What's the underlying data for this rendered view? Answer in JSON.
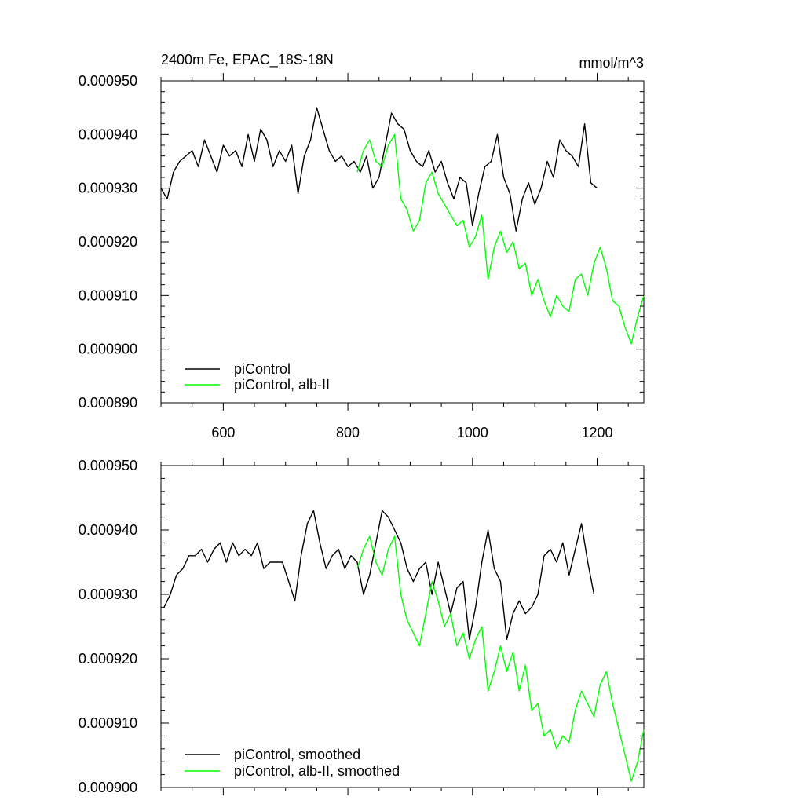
{
  "chart_data": [
    {
      "type": "line",
      "title": "2400m Fe, EPAC_18S-18N",
      "units_label": "mmol/m^3",
      "xlim": [
        500,
        1275
      ],
      "ylim": [
        0.00089,
        0.00095
      ],
      "xticks": [
        600,
        800,
        1000,
        1200
      ],
      "yticks": [
        0.00089,
        0.0009,
        0.00091,
        0.00092,
        0.00093,
        0.00094,
        0.00095
      ],
      "ytick_labels": [
        "0.000890",
        "0.000900",
        "0.000910",
        "0.000920",
        "0.000930",
        "0.000940",
        "0.000950"
      ],
      "xtick_labels": [
        "600",
        "800",
        "1000",
        "1200"
      ],
      "legend": "bottom-left",
      "grid": false,
      "series": [
        {
          "name": "piControl",
          "color": "#000000",
          "x": [
            500,
            510,
            520,
            530,
            540,
            550,
            560,
            570,
            580,
            590,
            600,
            610,
            620,
            630,
            640,
            650,
            660,
            670,
            680,
            690,
            700,
            710,
            720,
            730,
            740,
            750,
            760,
            770,
            780,
            790,
            800,
            810,
            820,
            830,
            840,
            850,
            860,
            870,
            880,
            890,
            900,
            910,
            920,
            930,
            940,
            950,
            960,
            970,
            980,
            990,
            1000,
            1010,
            1020,
            1030,
            1040,
            1050,
            1060,
            1070,
            1080,
            1090,
            1100,
            1110,
            1120,
            1130,
            1140,
            1150,
            1160,
            1170,
            1180,
            1190,
            1200
          ],
          "values": [
            0.00093,
            0.000928,
            0.000933,
            0.000935,
            0.000936,
            0.000937,
            0.000934,
            0.000939,
            0.000936,
            0.000933,
            0.000938,
            0.000936,
            0.000937,
            0.000934,
            0.00094,
            0.000935,
            0.000941,
            0.000939,
            0.000934,
            0.000937,
            0.000935,
            0.000938,
            0.000929,
            0.000936,
            0.000939,
            0.000945,
            0.000941,
            0.000937,
            0.000935,
            0.000936,
            0.000934,
            0.000935,
            0.000933,
            0.000936,
            0.00093,
            0.000932,
            0.000938,
            0.000944,
            0.000942,
            0.000941,
            0.000937,
            0.000935,
            0.000934,
            0.000937,
            0.000933,
            0.000935,
            0.000931,
            0.000928,
            0.000932,
            0.000931,
            0.000923,
            0.000929,
            0.000934,
            0.000935,
            0.00094,
            0.000932,
            0.000929,
            0.000922,
            0.000928,
            0.000931,
            0.000927,
            0.00093,
            0.000935,
            0.000932,
            0.000939,
            0.000937,
            0.000936,
            0.000934,
            0.000942,
            0.000931,
            0.00093
          ]
        },
        {
          "name": "piControl, alb-II",
          "color": "#00ff00",
          "x": [
            815,
            825,
            835,
            845,
            855,
            865,
            875,
            885,
            895,
            905,
            915,
            925,
            935,
            945,
            955,
            965,
            975,
            985,
            995,
            1005,
            1015,
            1025,
            1035,
            1045,
            1055,
            1065,
            1075,
            1085,
            1095,
            1105,
            1115,
            1125,
            1135,
            1145,
            1155,
            1165,
            1175,
            1185,
            1195,
            1205,
            1215,
            1225,
            1235,
            1245,
            1255,
            1265,
            1275
          ],
          "values": [
            0.000933,
            0.000937,
            0.000939,
            0.000935,
            0.000934,
            0.000938,
            0.00094,
            0.000928,
            0.000926,
            0.000922,
            0.000924,
            0.000931,
            0.000933,
            0.000929,
            0.000927,
            0.000925,
            0.000923,
            0.000924,
            0.000919,
            0.000921,
            0.000925,
            0.000913,
            0.000919,
            0.000922,
            0.000918,
            0.00092,
            0.000915,
            0.000916,
            0.00091,
            0.000913,
            0.000909,
            0.000906,
            0.00091,
            0.000908,
            0.000907,
            0.000913,
            0.000914,
            0.00091,
            0.000916,
            0.000919,
            0.000915,
            0.000909,
            0.000908,
            0.000904,
            0.000901,
            0.000906,
            0.00091
          ]
        }
      ]
    },
    {
      "type": "line",
      "xlim": [
        500,
        1275
      ],
      "ylim": [
        0.0009,
        0.00095
      ],
      "xticks": [
        600,
        800,
        1000,
        1200
      ],
      "yticks": [
        0.0009,
        0.00091,
        0.00092,
        0.00093,
        0.00094,
        0.00095
      ],
      "ytick_labels": [
        "0.000900",
        "0.000910",
        "0.000920",
        "0.000930",
        "0.000940",
        "0.000950"
      ],
      "legend": "bottom-left",
      "grid": false,
      "series": [
        {
          "name": "piControl, smoothed",
          "color": "#000000",
          "x": [
            505,
            515,
            525,
            535,
            545,
            555,
            565,
            575,
            585,
            595,
            605,
            615,
            625,
            635,
            645,
            655,
            665,
            675,
            685,
            695,
            705,
            715,
            725,
            735,
            745,
            755,
            765,
            775,
            785,
            795,
            805,
            815,
            825,
            835,
            845,
            855,
            865,
            875,
            885,
            895,
            905,
            915,
            925,
            935,
            945,
            955,
            965,
            975,
            985,
            995,
            1005,
            1015,
            1025,
            1035,
            1045,
            1055,
            1065,
            1075,
            1085,
            1095,
            1105,
            1115,
            1125,
            1135,
            1145,
            1155,
            1165,
            1175,
            1185,
            1195
          ],
          "values": [
            0.000928,
            0.00093,
            0.000933,
            0.000934,
            0.000936,
            0.000936,
            0.000937,
            0.000935,
            0.000937,
            0.000938,
            0.000935,
            0.000938,
            0.000936,
            0.000937,
            0.000936,
            0.000938,
            0.000934,
            0.000935,
            0.000935,
            0.000935,
            0.000932,
            0.000929,
            0.000936,
            0.000941,
            0.000943,
            0.000938,
            0.000934,
            0.000936,
            0.000937,
            0.000934,
            0.000936,
            0.000935,
            0.00093,
            0.000933,
            0.000938,
            0.000943,
            0.000942,
            0.00094,
            0.000938,
            0.000934,
            0.000932,
            0.000934,
            0.000935,
            0.00093,
            0.000935,
            0.000931,
            0.000927,
            0.000931,
            0.000932,
            0.000923,
            0.000928,
            0.000935,
            0.00094,
            0.000934,
            0.000932,
            0.000923,
            0.000927,
            0.000929,
            0.000927,
            0.000928,
            0.00093,
            0.000936,
            0.000937,
            0.000935,
            0.000938,
            0.000933,
            0.000937,
            0.000941,
            0.000935,
            0.00093
          ]
        },
        {
          "name": "piControl, alb-II, smoothed",
          "color": "#00ff00",
          "x": [
            815,
            825,
            835,
            845,
            855,
            865,
            875,
            885,
            895,
            905,
            915,
            925,
            935,
            945,
            955,
            965,
            975,
            985,
            995,
            1005,
            1015,
            1025,
            1035,
            1045,
            1055,
            1065,
            1075,
            1085,
            1095,
            1105,
            1115,
            1125,
            1135,
            1145,
            1155,
            1165,
            1175,
            1185,
            1195,
            1205,
            1215,
            1225,
            1235,
            1245,
            1255,
            1265,
            1275
          ],
          "values": [
            0.000934,
            0.000937,
            0.000939,
            0.000935,
            0.000933,
            0.000937,
            0.000939,
            0.00093,
            0.000926,
            0.000924,
            0.000922,
            0.000927,
            0.000932,
            0.000929,
            0.000925,
            0.000927,
            0.000922,
            0.000924,
            0.00092,
            0.000923,
            0.000925,
            0.000915,
            0.000918,
            0.000922,
            0.000918,
            0.000921,
            0.000915,
            0.000919,
            0.000912,
            0.000913,
            0.000908,
            0.000909,
            0.000906,
            0.000908,
            0.000907,
            0.000912,
            0.000915,
            0.000913,
            0.000911,
            0.000916,
            0.000918,
            0.000913,
            0.000909,
            0.000905,
            0.000901,
            0.000904,
            0.000909
          ]
        }
      ]
    }
  ]
}
